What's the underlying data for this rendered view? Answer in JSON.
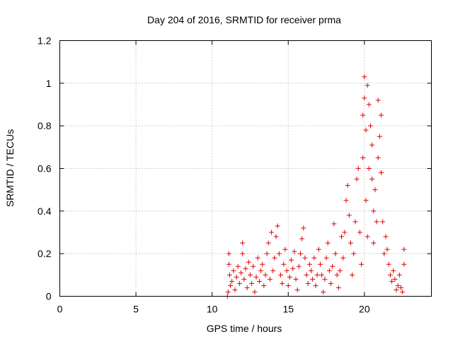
{
  "chart_data": {
    "type": "scatter",
    "title": "Day 204 of 2016, SRMTID for receiver prma",
    "xlabel": "GPS time / hours",
    "ylabel": "SRMTID / TECUs",
    "xlim": [
      0,
      24.4
    ],
    "ylim": [
      0,
      1.2
    ],
    "xticks": [
      0,
      5,
      10,
      15,
      20
    ],
    "xtick_labels": [
      "0",
      "5",
      "10",
      "15",
      "20"
    ],
    "yticks": [
      0,
      0.2,
      0.4,
      0.6,
      0.8,
      1.0,
      1.2
    ],
    "ytick_labels": [
      "0",
      "0.2",
      "0.4",
      "0.6",
      "0.8",
      "1",
      "1.2"
    ],
    "grid": true,
    "marker": "+",
    "color": "#e00000",
    "series": [
      {
        "name": "SRMTID",
        "points": [
          [
            11.0,
            0.0
          ],
          [
            11.05,
            0.02
          ],
          [
            11.1,
            0.15
          ],
          [
            11.1,
            0.2
          ],
          [
            11.15,
            0.1
          ],
          [
            11.2,
            0.05
          ],
          [
            11.3,
            0.07
          ],
          [
            11.4,
            0.12
          ],
          [
            11.5,
            0.03
          ],
          [
            11.6,
            0.09
          ],
          [
            11.7,
            0.14
          ],
          [
            11.8,
            0.06
          ],
          [
            11.9,
            0.11
          ],
          [
            12.0,
            0.2
          ],
          [
            12.0,
            0.25
          ],
          [
            12.1,
            0.08
          ],
          [
            12.2,
            0.13
          ],
          [
            12.3,
            0.04
          ],
          [
            12.4,
            0.16
          ],
          [
            12.5,
            0.1
          ],
          [
            12.6,
            0.06
          ],
          [
            12.7,
            0.14
          ],
          [
            12.8,
            0.02
          ],
          [
            12.9,
            0.09
          ],
          [
            13.0,
            0.18
          ],
          [
            13.1,
            0.07
          ],
          [
            13.2,
            0.12
          ],
          [
            13.3,
            0.15
          ],
          [
            13.4,
            0.05
          ],
          [
            13.5,
            0.1
          ],
          [
            13.6,
            0.2
          ],
          [
            13.7,
            0.25
          ],
          [
            13.8,
            0.08
          ],
          [
            13.9,
            0.3
          ],
          [
            14.0,
            0.12
          ],
          [
            14.1,
            0.18
          ],
          [
            14.2,
            0.28
          ],
          [
            14.3,
            0.33
          ],
          [
            14.4,
            0.2
          ],
          [
            14.5,
            0.1
          ],
          [
            14.6,
            0.06
          ],
          [
            14.7,
            0.15
          ],
          [
            14.8,
            0.22
          ],
          [
            14.9,
            0.12
          ],
          [
            15.0,
            0.05
          ],
          [
            15.1,
            0.09
          ],
          [
            15.2,
            0.17
          ],
          [
            15.3,
            0.13
          ],
          [
            15.4,
            0.21
          ],
          [
            15.5,
            0.08
          ],
          [
            15.6,
            0.03
          ],
          [
            15.7,
            0.14
          ],
          [
            15.8,
            0.2
          ],
          [
            15.9,
            0.27
          ],
          [
            16.0,
            0.32
          ],
          [
            16.1,
            0.18
          ],
          [
            16.2,
            0.1
          ],
          [
            16.3,
            0.06
          ],
          [
            16.4,
            0.15
          ],
          [
            16.5,
            0.12
          ],
          [
            16.6,
            0.08
          ],
          [
            16.7,
            0.18
          ],
          [
            16.8,
            0.05
          ],
          [
            16.9,
            0.1
          ],
          [
            17.0,
            0.22
          ],
          [
            17.1,
            0.15
          ],
          [
            17.2,
            0.1
          ],
          [
            17.3,
            0.02
          ],
          [
            17.4,
            0.08
          ],
          [
            17.5,
            0.18
          ],
          [
            17.6,
            0.25
          ],
          [
            17.7,
            0.12
          ],
          [
            17.8,
            0.06
          ],
          [
            17.9,
            0.14
          ],
          [
            18.0,
            0.34
          ],
          [
            18.1,
            0.2
          ],
          [
            18.2,
            0.1
          ],
          [
            18.3,
            0.04
          ],
          [
            18.4,
            0.12
          ],
          [
            18.5,
            0.28
          ],
          [
            18.6,
            0.18
          ],
          [
            18.7,
            0.3
          ],
          [
            18.8,
            0.45
          ],
          [
            18.9,
            0.52
          ],
          [
            19.0,
            0.38
          ],
          [
            19.1,
            0.25
          ],
          [
            19.2,
            0.1
          ],
          [
            19.3,
            0.2
          ],
          [
            19.4,
            0.35
          ],
          [
            19.5,
            0.55
          ],
          [
            19.6,
            0.6
          ],
          [
            19.7,
            0.3
          ],
          [
            19.8,
            0.15
          ],
          [
            19.9,
            0.65
          ],
          [
            19.9,
            0.85
          ],
          [
            20.0,
            1.03
          ],
          [
            20.0,
            0.93
          ],
          [
            20.1,
            0.78
          ],
          [
            20.1,
            0.45
          ],
          [
            20.2,
            0.28
          ],
          [
            20.2,
            0.99
          ],
          [
            20.3,
            0.9
          ],
          [
            20.3,
            0.6
          ],
          [
            20.4,
            0.8
          ],
          [
            20.5,
            0.71
          ],
          [
            20.5,
            0.55
          ],
          [
            20.6,
            0.4
          ],
          [
            20.6,
            0.25
          ],
          [
            20.7,
            0.5
          ],
          [
            20.8,
            0.35
          ],
          [
            20.9,
            0.92
          ],
          [
            20.9,
            0.65
          ],
          [
            21.0,
            0.75
          ],
          [
            21.1,
            0.85
          ],
          [
            21.1,
            0.58
          ],
          [
            21.2,
            0.35
          ],
          [
            21.3,
            0.2
          ],
          [
            21.4,
            0.28
          ],
          [
            21.5,
            0.22
          ],
          [
            21.6,
            0.15
          ],
          [
            21.7,
            0.1
          ],
          [
            21.8,
            0.07
          ],
          [
            21.9,
            0.12
          ],
          [
            22.0,
            0.08
          ],
          [
            22.1,
            0.03
          ],
          [
            22.2,
            0.05
          ],
          [
            22.3,
            0.1
          ],
          [
            22.4,
            0.04
          ],
          [
            22.5,
            0.02
          ],
          [
            22.6,
            0.15
          ],
          [
            22.6,
            0.22
          ]
        ]
      }
    ]
  }
}
